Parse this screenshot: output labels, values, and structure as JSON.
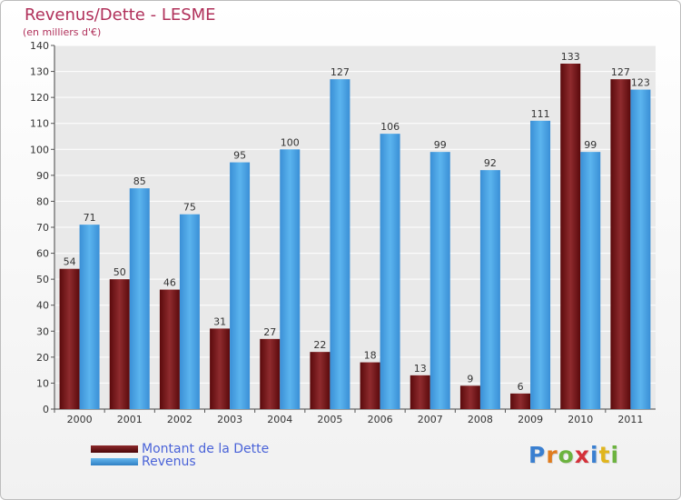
{
  "chart_data": {
    "type": "bar",
    "title": "Revenus/Dette - LESME",
    "subtitle": "(en milliers d'€)",
    "categories": [
      "2000",
      "2001",
      "2002",
      "2003",
      "2004",
      "2005",
      "2006",
      "2007",
      "2008",
      "2009",
      "2010",
      "2011"
    ],
    "series": [
      {
        "name": "Montant de la Dette",
        "color": "#7a1618",
        "values": [
          54,
          50,
          46,
          31,
          27,
          22,
          18,
          13,
          9,
          6,
          133,
          127
        ]
      },
      {
        "name": "Revenus",
        "color": "#4aa3e3",
        "values": [
          71,
          85,
          75,
          95,
          100,
          127,
          106,
          99,
          92,
          111,
          99,
          123
        ]
      }
    ],
    "ylim": [
      0,
      140
    ],
    "yticks": [
      0,
      10,
      20,
      30,
      40,
      50,
      60,
      70,
      80,
      90,
      100,
      110,
      120,
      130,
      140
    ],
    "grid": true,
    "legend_position": "bottom-left"
  },
  "logo": {
    "letters": [
      "P",
      "r",
      "o",
      "x",
      "i",
      "t",
      "i"
    ],
    "colors": [
      "#3a7fd0",
      "#e07c1e",
      "#6cb33f",
      "#d4313a",
      "#3a7fd0",
      "#e0b51e",
      "#6cb33f"
    ]
  }
}
